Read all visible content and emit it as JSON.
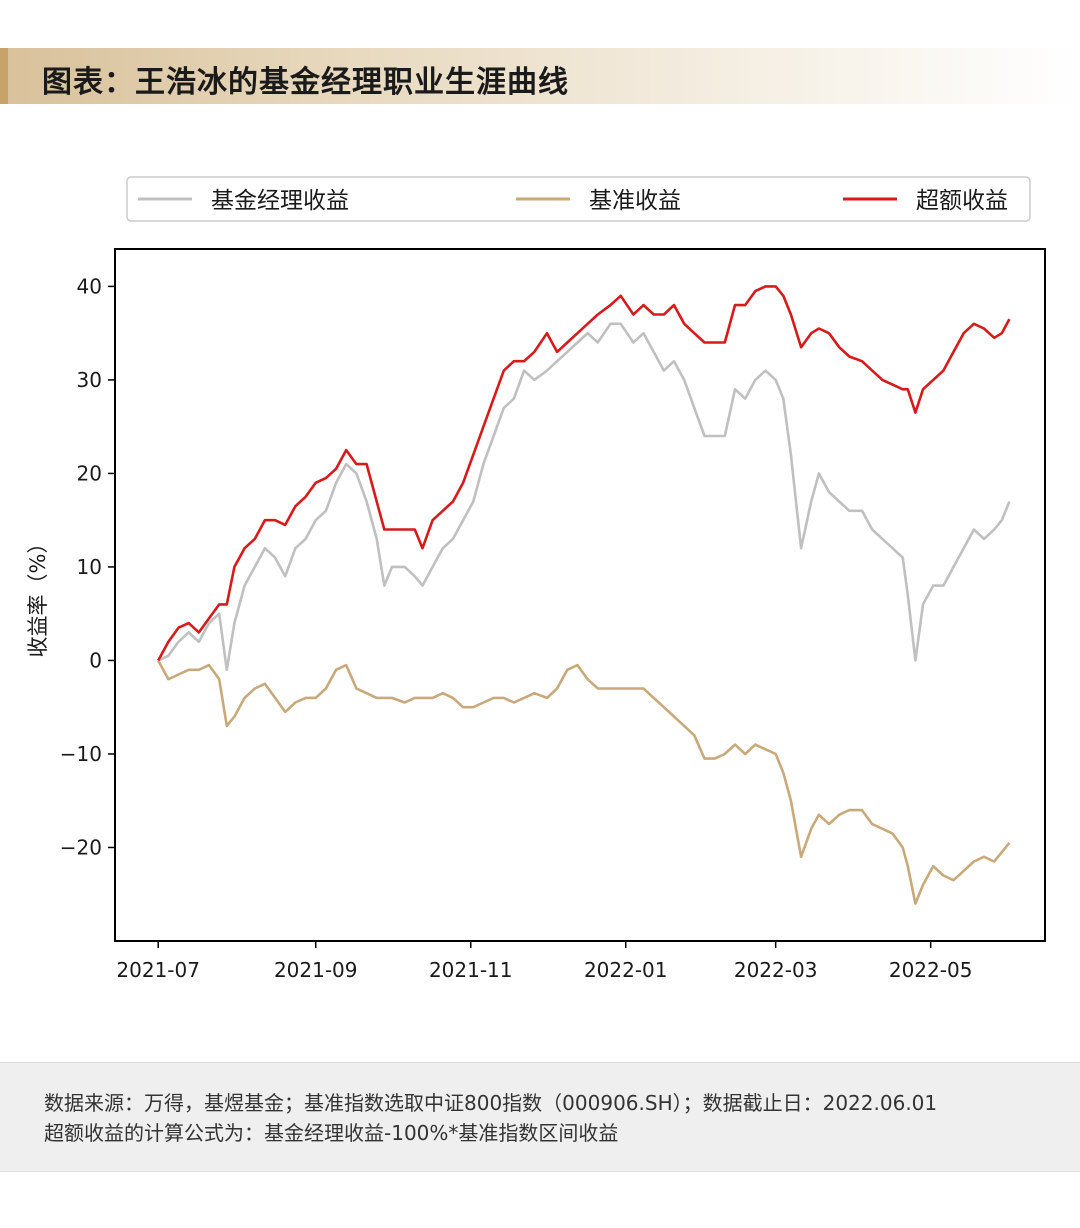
{
  "title": "图表：王浩冰的基金经理职业生涯曲线",
  "footer": {
    "line1": "数据来源：万得，基煜基金；基准指数选取中证800指数（000906.SH）；数据截止日：2022.06.01",
    "line2": "超额收益的计算公式为：基金经理收益-100%*基准指数区间收益"
  },
  "chart_data": {
    "type": "line",
    "xlabel": "",
    "ylabel": "收益率（%）",
    "ylim": [
      -30,
      44
    ],
    "yticks": [
      40,
      30,
      20,
      10,
      0,
      -10,
      -20
    ],
    "ytick_labels": [
      "40",
      "30",
      "20",
      "10",
      "0",
      "−10",
      "−20"
    ],
    "xlim": [
      "2021-06-14",
      "2022-06-15"
    ],
    "xticks": [
      "2021-07-01",
      "2021-09-01",
      "2021-11-01",
      "2022-01-01",
      "2022-03-01",
      "2022-05-01"
    ],
    "xtick_labels": [
      "2021-07",
      "2021-09",
      "2021-11",
      "2022-01",
      "2022-03",
      "2022-05"
    ],
    "grid": false,
    "legend_position": "top",
    "series": [
      {
        "name": "基金经理收益",
        "color": "#c0c0c0",
        "points": [
          [
            "2021-07-01",
            0
          ],
          [
            "2021-07-05",
            0.5
          ],
          [
            "2021-07-09",
            2
          ],
          [
            "2021-07-13",
            3
          ],
          [
            "2021-07-17",
            2
          ],
          [
            "2021-07-21",
            4
          ],
          [
            "2021-07-25",
            5
          ],
          [
            "2021-07-28",
            -1
          ],
          [
            "2021-07-31",
            4
          ],
          [
            "2021-08-04",
            8
          ],
          [
            "2021-08-08",
            10
          ],
          [
            "2021-08-12",
            12
          ],
          [
            "2021-08-16",
            11
          ],
          [
            "2021-08-20",
            9
          ],
          [
            "2021-08-24",
            12
          ],
          [
            "2021-08-28",
            13
          ],
          [
            "2021-09-01",
            15
          ],
          [
            "2021-09-05",
            16
          ],
          [
            "2021-09-09",
            19
          ],
          [
            "2021-09-13",
            21
          ],
          [
            "2021-09-17",
            20
          ],
          [
            "2021-09-21",
            17
          ],
          [
            "2021-09-25",
            13
          ],
          [
            "2021-09-28",
            8
          ],
          [
            "2021-10-01",
            10
          ],
          [
            "2021-10-06",
            10
          ],
          [
            "2021-10-10",
            9
          ],
          [
            "2021-10-13",
            8
          ],
          [
            "2021-10-17",
            10
          ],
          [
            "2021-10-21",
            12
          ],
          [
            "2021-10-25",
            13
          ],
          [
            "2021-10-29",
            15
          ],
          [
            "2021-11-02",
            17
          ],
          [
            "2021-11-06",
            21
          ],
          [
            "2021-11-10",
            24
          ],
          [
            "2021-11-14",
            27
          ],
          [
            "2021-11-18",
            28
          ],
          [
            "2021-11-22",
            31
          ],
          [
            "2021-11-26",
            30
          ],
          [
            "2021-12-01",
            31
          ],
          [
            "2021-12-05",
            32
          ],
          [
            "2021-12-09",
            33
          ],
          [
            "2021-12-13",
            34
          ],
          [
            "2021-12-17",
            35
          ],
          [
            "2021-12-21",
            34
          ],
          [
            "2021-12-26",
            36
          ],
          [
            "2021-12-30",
            36
          ],
          [
            "2022-01-04",
            34
          ],
          [
            "2022-01-08",
            35
          ],
          [
            "2022-01-12",
            33
          ],
          [
            "2022-01-16",
            31
          ],
          [
            "2022-01-20",
            32
          ],
          [
            "2022-01-24",
            30
          ],
          [
            "2022-01-28",
            27
          ],
          [
            "2022-02-01",
            24
          ],
          [
            "2022-02-05",
            24
          ],
          [
            "2022-02-09",
            24
          ],
          [
            "2022-02-13",
            29
          ],
          [
            "2022-02-17",
            28
          ],
          [
            "2022-02-21",
            30
          ],
          [
            "2022-02-25",
            31
          ],
          [
            "2022-03-01",
            30
          ],
          [
            "2022-03-04",
            28
          ],
          [
            "2022-03-07",
            22
          ],
          [
            "2022-03-11",
            12
          ],
          [
            "2022-03-15",
            17
          ],
          [
            "2022-03-18",
            20
          ],
          [
            "2022-03-22",
            18
          ],
          [
            "2022-03-26",
            17
          ],
          [
            "2022-03-30",
            16
          ],
          [
            "2022-04-04",
            16
          ],
          [
            "2022-04-08",
            14
          ],
          [
            "2022-04-12",
            13
          ],
          [
            "2022-04-16",
            12
          ],
          [
            "2022-04-20",
            11
          ],
          [
            "2022-04-22",
            7
          ],
          [
            "2022-04-25",
            0
          ],
          [
            "2022-04-28",
            6
          ],
          [
            "2022-05-02",
            8
          ],
          [
            "2022-05-06",
            8
          ],
          [
            "2022-05-10",
            10
          ],
          [
            "2022-05-14",
            12
          ],
          [
            "2022-05-18",
            14
          ],
          [
            "2022-05-22",
            13
          ],
          [
            "2022-05-26",
            14
          ],
          [
            "2022-05-29",
            15
          ],
          [
            "2022-06-01",
            17
          ]
        ]
      },
      {
        "name": "基准收益",
        "color": "#c9a97a",
        "points": [
          [
            "2021-07-01",
            0
          ],
          [
            "2021-07-05",
            -2
          ],
          [
            "2021-07-09",
            -1.5
          ],
          [
            "2021-07-13",
            -1
          ],
          [
            "2021-07-17",
            -1
          ],
          [
            "2021-07-21",
            -0.5
          ],
          [
            "2021-07-25",
            -2
          ],
          [
            "2021-07-28",
            -7
          ],
          [
            "2021-07-31",
            -6
          ],
          [
            "2021-08-04",
            -4
          ],
          [
            "2021-08-08",
            -3
          ],
          [
            "2021-08-12",
            -2.5
          ],
          [
            "2021-08-16",
            -4
          ],
          [
            "2021-08-20",
            -5.5
          ],
          [
            "2021-08-24",
            -4.5
          ],
          [
            "2021-08-28",
            -4
          ],
          [
            "2021-09-01",
            -4
          ],
          [
            "2021-09-05",
            -3
          ],
          [
            "2021-09-09",
            -1
          ],
          [
            "2021-09-13",
            -0.5
          ],
          [
            "2021-09-17",
            -3
          ],
          [
            "2021-09-21",
            -3.5
          ],
          [
            "2021-09-25",
            -4
          ],
          [
            "2021-09-28",
            -4
          ],
          [
            "2021-10-01",
            -4
          ],
          [
            "2021-10-06",
            -4.5
          ],
          [
            "2021-10-10",
            -4
          ],
          [
            "2021-10-13",
            -4
          ],
          [
            "2021-10-17",
            -4
          ],
          [
            "2021-10-21",
            -3.5
          ],
          [
            "2021-10-25",
            -4
          ],
          [
            "2021-10-29",
            -5
          ],
          [
            "2021-11-02",
            -5
          ],
          [
            "2021-11-06",
            -4.5
          ],
          [
            "2021-11-10",
            -4
          ],
          [
            "2021-11-14",
            -4
          ],
          [
            "2021-11-18",
            -4.5
          ],
          [
            "2021-11-22",
            -4
          ],
          [
            "2021-11-26",
            -3.5
          ],
          [
            "2021-12-01",
            -4
          ],
          [
            "2021-12-05",
            -3
          ],
          [
            "2021-12-09",
            -1
          ],
          [
            "2021-12-13",
            -0.5
          ],
          [
            "2021-12-17",
            -2
          ],
          [
            "2021-12-21",
            -3
          ],
          [
            "2021-12-26",
            -3
          ],
          [
            "2021-12-30",
            -3
          ],
          [
            "2022-01-04",
            -3
          ],
          [
            "2022-01-08",
            -3
          ],
          [
            "2022-01-12",
            -4
          ],
          [
            "2022-01-16",
            -5
          ],
          [
            "2022-01-20",
            -6
          ],
          [
            "2022-01-24",
            -7
          ],
          [
            "2022-01-28",
            -8
          ],
          [
            "2022-02-01",
            -10.5
          ],
          [
            "2022-02-05",
            -10.5
          ],
          [
            "2022-02-09",
            -10
          ],
          [
            "2022-02-13",
            -9
          ],
          [
            "2022-02-17",
            -10
          ],
          [
            "2022-02-21",
            -9
          ],
          [
            "2022-02-25",
            -9.5
          ],
          [
            "2022-03-01",
            -10
          ],
          [
            "2022-03-04",
            -12
          ],
          [
            "2022-03-07",
            -15
          ],
          [
            "2022-03-11",
            -21
          ],
          [
            "2022-03-15",
            -18
          ],
          [
            "2022-03-18",
            -16.5
          ],
          [
            "2022-03-22",
            -17.5
          ],
          [
            "2022-03-26",
            -16.5
          ],
          [
            "2022-03-30",
            -16
          ],
          [
            "2022-04-04",
            -16
          ],
          [
            "2022-04-08",
            -17.5
          ],
          [
            "2022-04-12",
            -18
          ],
          [
            "2022-04-16",
            -18.5
          ],
          [
            "2022-04-20",
            -20
          ],
          [
            "2022-04-22",
            -22
          ],
          [
            "2022-04-25",
            -26
          ],
          [
            "2022-04-28",
            -24
          ],
          [
            "2022-05-02",
            -22
          ],
          [
            "2022-05-06",
            -23
          ],
          [
            "2022-05-10",
            -23.5
          ],
          [
            "2022-05-14",
            -22.5
          ],
          [
            "2022-05-18",
            -21.5
          ],
          [
            "2022-05-22",
            -21
          ],
          [
            "2022-05-26",
            -21.5
          ],
          [
            "2022-05-29",
            -20.5
          ],
          [
            "2022-06-01",
            -19.5
          ]
        ]
      },
      {
        "name": "超额收益",
        "color": "#d71a1a",
        "points": [
          [
            "2021-07-01",
            0
          ],
          [
            "2021-07-05",
            2
          ],
          [
            "2021-07-09",
            3.5
          ],
          [
            "2021-07-13",
            4
          ],
          [
            "2021-07-17",
            3
          ],
          [
            "2021-07-21",
            4.5
          ],
          [
            "2021-07-25",
            6
          ],
          [
            "2021-07-28",
            6
          ],
          [
            "2021-07-31",
            10
          ],
          [
            "2021-08-04",
            12
          ],
          [
            "2021-08-08",
            13
          ],
          [
            "2021-08-12",
            15
          ],
          [
            "2021-08-16",
            15
          ],
          [
            "2021-08-20",
            14.5
          ],
          [
            "2021-08-24",
            16.5
          ],
          [
            "2021-08-28",
            17.5
          ],
          [
            "2021-09-01",
            19
          ],
          [
            "2021-09-05",
            19.5
          ],
          [
            "2021-09-09",
            20.5
          ],
          [
            "2021-09-13",
            22.5
          ],
          [
            "2021-09-17",
            21
          ],
          [
            "2021-09-21",
            21
          ],
          [
            "2021-09-25",
            17
          ],
          [
            "2021-09-28",
            14
          ],
          [
            "2021-10-01",
            14
          ],
          [
            "2021-10-06",
            14
          ],
          [
            "2021-10-10",
            14
          ],
          [
            "2021-10-13",
            12
          ],
          [
            "2021-10-17",
            15
          ],
          [
            "2021-10-21",
            16
          ],
          [
            "2021-10-25",
            17
          ],
          [
            "2021-10-29",
            19
          ],
          [
            "2021-11-02",
            22
          ],
          [
            "2021-11-06",
            25
          ],
          [
            "2021-11-10",
            28
          ],
          [
            "2021-11-14",
            31
          ],
          [
            "2021-11-18",
            32
          ],
          [
            "2021-11-22",
            32
          ],
          [
            "2021-11-26",
            33
          ],
          [
            "2021-12-01",
            35
          ],
          [
            "2021-12-05",
            33
          ],
          [
            "2021-12-09",
            34
          ],
          [
            "2021-12-13",
            35
          ],
          [
            "2021-12-17",
            36
          ],
          [
            "2021-12-21",
            37
          ],
          [
            "2021-12-26",
            38
          ],
          [
            "2021-12-30",
            39
          ],
          [
            "2022-01-04",
            37
          ],
          [
            "2022-01-08",
            38
          ],
          [
            "2022-01-12",
            37
          ],
          [
            "2022-01-16",
            37
          ],
          [
            "2022-01-20",
            38
          ],
          [
            "2022-01-24",
            36
          ],
          [
            "2022-01-28",
            35
          ],
          [
            "2022-02-01",
            34
          ],
          [
            "2022-02-05",
            34
          ],
          [
            "2022-02-09",
            34
          ],
          [
            "2022-02-13",
            38
          ],
          [
            "2022-02-17",
            38
          ],
          [
            "2022-02-21",
            39.5
          ],
          [
            "2022-02-25",
            40
          ],
          [
            "2022-03-01",
            40
          ],
          [
            "2022-03-04",
            39
          ],
          [
            "2022-03-07",
            37
          ],
          [
            "2022-03-11",
            33.5
          ],
          [
            "2022-03-15",
            35
          ],
          [
            "2022-03-18",
            35.5
          ],
          [
            "2022-03-22",
            35
          ],
          [
            "2022-03-26",
            33.5
          ],
          [
            "2022-03-30",
            32.5
          ],
          [
            "2022-04-04",
            32
          ],
          [
            "2022-04-08",
            31
          ],
          [
            "2022-04-12",
            30
          ],
          [
            "2022-04-16",
            29.5
          ],
          [
            "2022-04-20",
            29
          ],
          [
            "2022-04-22",
            29
          ],
          [
            "2022-04-25",
            26.5
          ],
          [
            "2022-04-28",
            29
          ],
          [
            "2022-05-02",
            30
          ],
          [
            "2022-05-06",
            31
          ],
          [
            "2022-05-10",
            33
          ],
          [
            "2022-05-14",
            35
          ],
          [
            "2022-05-18",
            36
          ],
          [
            "2022-05-22",
            35.5
          ],
          [
            "2022-05-26",
            34.5
          ],
          [
            "2022-05-29",
            35
          ],
          [
            "2022-06-01",
            36.5
          ]
        ]
      }
    ]
  }
}
